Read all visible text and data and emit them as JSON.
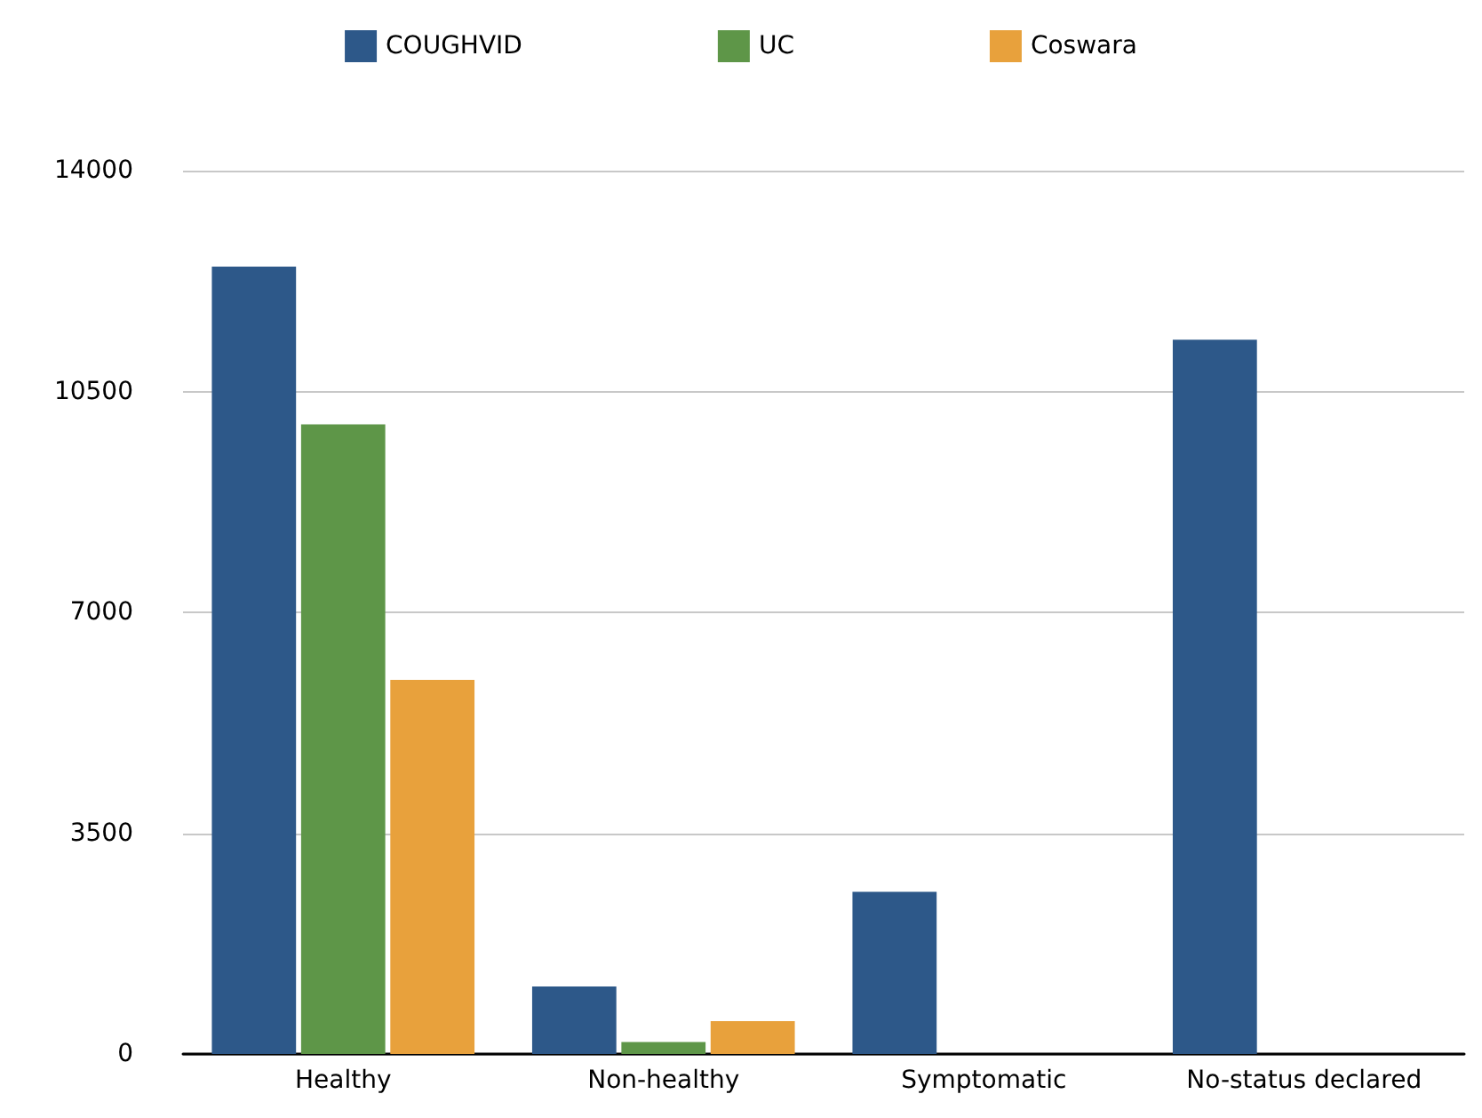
{
  "chart_data": {
    "type": "bar",
    "categories": [
      "Healthy",
      "Non-healthy",
      "Symptomatic",
      "No-status declared"
    ],
    "series": [
      {
        "name": "COUGHVID",
        "color": "#2d5889",
        "values": [
          12480,
          1070,
          2570,
          11320
        ]
      },
      {
        "name": "UC",
        "color": "#5e9648",
        "values": [
          9980,
          190,
          null,
          null
        ]
      },
      {
        "name": "Coswara",
        "color": "#e8a13c",
        "values": [
          5930,
          520,
          null,
          null
        ]
      }
    ],
    "ylim": [
      0,
      14000
    ],
    "yticks": [
      0,
      3500,
      7000,
      10500,
      14000
    ],
    "grid": "y",
    "legend": "top"
  }
}
